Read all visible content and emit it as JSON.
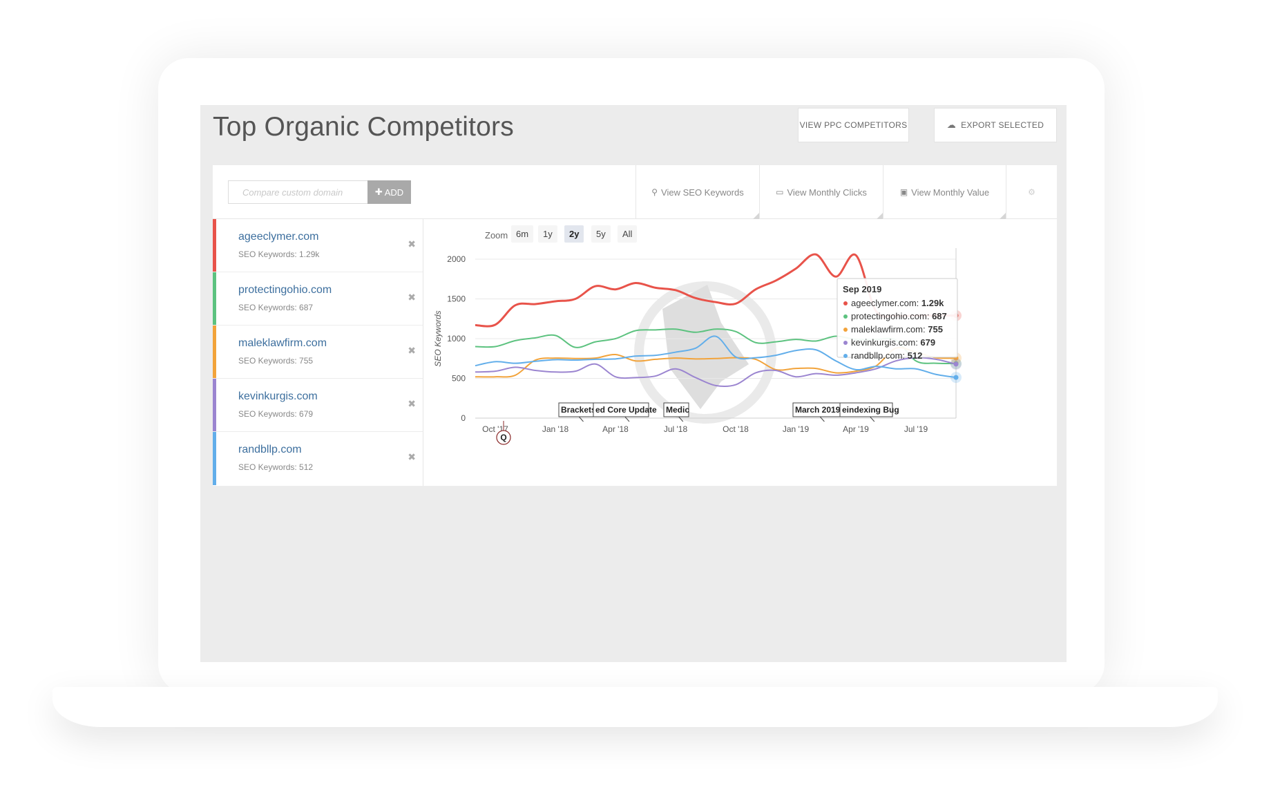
{
  "header": {
    "title": "Top Organic Competitors",
    "ppc_button": "VIEW PPC COMPETITORS",
    "export_button": "EXPORT SELECTED"
  },
  "toolbar": {
    "input_placeholder": "Compare custom domain",
    "add_label": "ADD",
    "tabs": {
      "seo": "View SEO Keywords",
      "clicks": "View Monthly Clicks",
      "value": "View Monthly Value"
    }
  },
  "competitors": [
    {
      "domain": "ageeclymer.com",
      "meta": "SEO Keywords: 1.29k",
      "color": "#e8534a"
    },
    {
      "domain": "protectingohio.com",
      "meta": "SEO Keywords: 687",
      "color": "#5cc27f"
    },
    {
      "domain": "maleklawfirm.com",
      "meta": "SEO Keywords: 755",
      "color": "#f2a33a"
    },
    {
      "domain": "kevinkurgis.com",
      "meta": "SEO Keywords: 679",
      "color": "#9b85d0"
    },
    {
      "domain": "randbllp.com",
      "meta": "SEO Keywords: 512",
      "color": "#62aeea"
    }
  ],
  "zoom": {
    "label": "Zoom",
    "options": [
      "6m",
      "1y",
      "2y",
      "5y",
      "All"
    ],
    "active": "2y"
  },
  "chart_data": {
    "type": "line",
    "ylabel": "SEO Keywords",
    "ylim": [
      0,
      2000
    ],
    "yticks": [
      0,
      500,
      1000,
      1500,
      2000
    ],
    "x_tick_labels": [
      "Oct '17",
      "Jan '18",
      "Apr '18",
      "Jul '18",
      "Oct '18",
      "Jan '19",
      "Apr '19",
      "Jul '19"
    ],
    "x_start": "Sep '17",
    "x_end": "Sep '19",
    "series": [
      {
        "name": "ageeclymer.com",
        "color": "#e8534a",
        "values": [
          1170,
          1175,
          1420,
          1435,
          1470,
          1500,
          1660,
          1620,
          1700,
          1640,
          1610,
          1510,
          1460,
          1440,
          1620,
          1730,
          1880,
          2060,
          1780,
          2050,
          1350,
          1290,
          1290,
          1290,
          1290
        ]
      },
      {
        "name": "protectingohio.com",
        "color": "#5cc27f",
        "values": [
          900,
          900,
          975,
          1010,
          1040,
          890,
          960,
          1000,
          1100,
          1110,
          1120,
          1080,
          1120,
          1090,
          950,
          960,
          990,
          970,
          1030,
          990,
          990,
          980,
          720,
          690,
          687
        ]
      },
      {
        "name": "maleklawfirm.com",
        "color": "#f2a33a",
        "values": [
          520,
          520,
          540,
          730,
          755,
          750,
          755,
          800,
          720,
          740,
          755,
          745,
          750,
          760,
          740,
          610,
          625,
          625,
          570,
          590,
          655,
          880,
          830,
          760,
          755
        ]
      },
      {
        "name": "kevinkurgis.com",
        "color": "#9b85d0",
        "values": [
          580,
          590,
          640,
          600,
          580,
          590,
          680,
          520,
          510,
          530,
          620,
          510,
          410,
          420,
          570,
          600,
          520,
          560,
          540,
          570,
          620,
          720,
          760,
          740,
          679
        ]
      },
      {
        "name": "randbllp.com",
        "color": "#62aeea",
        "values": [
          660,
          710,
          690,
          715,
          735,
          730,
          740,
          745,
          780,
          790,
          830,
          880,
          1030,
          770,
          760,
          790,
          850,
          860,
          720,
          610,
          650,
          620,
          620,
          550,
          512
        ]
      }
    ],
    "flags": [
      {
        "label": "Brackets",
        "month": 6
      },
      {
        "label": "ed Core Update",
        "month": 7
      },
      {
        "label": "Medic",
        "month": 11
      },
      {
        "label": "March 2019",
        "month": 18
      },
      {
        "label": "eindexing Bug",
        "month": 19
      }
    ],
    "marker": {
      "label": "Q",
      "month": 1
    },
    "tooltip": {
      "title": "Sep 2019",
      "rows": [
        {
          "domain": "ageeclymer.com:",
          "value": "1.29k",
          "color": "#e8534a"
        },
        {
          "domain": "protectingohio.com:",
          "value": "687",
          "color": "#5cc27f"
        },
        {
          "domain": "maleklawfirm.com:",
          "value": "755",
          "color": "#f2a33a"
        },
        {
          "domain": "kevinkurgis.com:",
          "value": "679",
          "color": "#9b85d0"
        },
        {
          "domain": "randbllp.com:",
          "value": "512",
          "color": "#62aeea"
        }
      ]
    }
  }
}
